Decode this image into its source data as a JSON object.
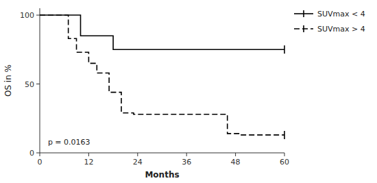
{
  "chart_data": {
    "type": "step",
    "title": "",
    "xlabel": "Months",
    "ylabel": "OS in %",
    "xlim": [
      0,
      60
    ],
    "ylim": [
      0,
      105
    ],
    "xticks": [
      0,
      12,
      24,
      36,
      48,
      60
    ],
    "yticks": [
      0,
      50,
      100
    ],
    "grid": false,
    "legend": "right",
    "series": [
      {
        "name": "SUVmax < 4",
        "color": "#000000",
        "line_style": "solid",
        "x": [
          0,
          10,
          10,
          18,
          18,
          60
        ],
        "values": [
          100,
          100,
          85,
          85,
          75,
          75
        ],
        "censored_x": [
          60
        ],
        "censored_y": [
          75
        ]
      },
      {
        "name": "SUVmax > 4",
        "color": "#000000",
        "line_style": "dashed",
        "x": [
          0,
          7,
          7,
          9,
          9,
          12,
          12,
          14,
          14,
          17,
          17,
          20,
          20,
          23,
          23,
          46,
          46,
          49,
          49,
          60
        ],
        "values": [
          100,
          100,
          83,
          83,
          73,
          73,
          65,
          65,
          58,
          58,
          44,
          44,
          29,
          29,
          28,
          28,
          14,
          14,
          13,
          13
        ],
        "censored_x": [
          60
        ],
        "censored_y": [
          13
        ]
      }
    ],
    "annotations": [
      {
        "text": "p = 0.0163",
        "x": 2,
        "y": 6
      }
    ]
  }
}
